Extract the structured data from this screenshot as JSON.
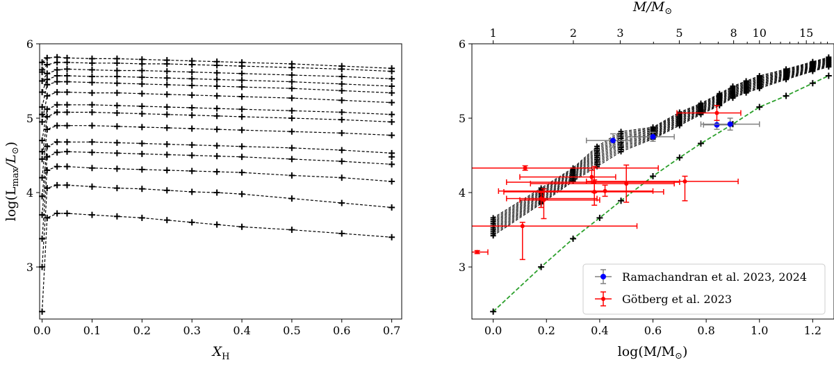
{
  "chart_data": [
    {
      "type": "line",
      "xlabel_main": "X",
      "xlabel_sub": "H",
      "ylabel_text": "log(L",
      "ylabel_sub": "max",
      "ylabel_tail": "/L",
      "ylabel_sun": "⊙",
      "ylabel_close": ")",
      "xlim": [
        -0.005,
        0.72
      ],
      "ylim": [
        2.3,
        6.0
      ],
      "xticks": [
        0.0,
        0.1,
        0.2,
        0.3,
        0.4,
        0.5,
        0.6,
        0.7
      ],
      "xtick_labels": [
        "0.0",
        "0.1",
        "0.2",
        "0.3",
        "0.4",
        "0.5",
        "0.6",
        "0.7"
      ],
      "yticks": [
        3,
        4,
        5,
        6
      ],
      "ytick_labels": [
        "3",
        "4",
        "5",
        "6"
      ],
      "x": [
        0.0,
        0.01,
        0.03,
        0.05,
        0.1,
        0.15,
        0.2,
        0.25,
        0.3,
        0.35,
        0.4,
        0.5,
        0.6,
        0.7
      ],
      "series": [
        {
          "values": [
            2.4,
            3.66,
            3.72,
            3.72,
            3.7,
            3.68,
            3.66,
            3.63,
            3.6,
            3.57,
            3.54,
            3.5,
            3.45,
            3.4
          ]
        },
        {
          "values": [
            3.0,
            4.06,
            4.1,
            4.1,
            4.08,
            4.06,
            4.05,
            4.03,
            4.01,
            4.0,
            3.98,
            3.92,
            3.86,
            3.8
          ]
        },
        {
          "values": [
            3.38,
            4.3,
            4.35,
            4.35,
            4.33,
            4.32,
            4.31,
            4.3,
            4.29,
            4.28,
            4.27,
            4.23,
            4.2,
            4.15
          ]
        },
        {
          "values": [
            3.7,
            4.48,
            4.54,
            4.55,
            4.54,
            4.53,
            4.52,
            4.51,
            4.5,
            4.49,
            4.48,
            4.45,
            4.42,
            4.38
          ]
        },
        {
          "values": [
            3.95,
            4.62,
            4.68,
            4.68,
            4.68,
            4.67,
            4.66,
            4.65,
            4.64,
            4.63,
            4.62,
            4.6,
            4.57,
            4.53
          ]
        },
        {
          "values": [
            4.2,
            4.85,
            4.9,
            4.9,
            4.9,
            4.89,
            4.88,
            4.87,
            4.86,
            4.85,
            4.84,
            4.82,
            4.8,
            4.77
          ]
        },
        {
          "values": [
            4.45,
            5.02,
            5.08,
            5.08,
            5.08,
            5.07,
            5.06,
            5.05,
            5.04,
            5.03,
            5.02,
            5.0,
            4.98,
            4.95
          ]
        },
        {
          "values": [
            4.7,
            5.12,
            5.18,
            5.18,
            5.18,
            5.17,
            5.16,
            5.15,
            5.14,
            5.13,
            5.12,
            5.1,
            5.08,
            5.05
          ]
        },
        {
          "values": [
            4.95,
            5.3,
            5.35,
            5.35,
            5.34,
            5.34,
            5.33,
            5.32,
            5.31,
            5.3,
            5.29,
            5.27,
            5.24,
            5.21
          ]
        },
        {
          "values": [
            5.15,
            5.45,
            5.49,
            5.49,
            5.48,
            5.47,
            5.46,
            5.45,
            5.44,
            5.43,
            5.42,
            5.4,
            5.37,
            5.34
          ]
        },
        {
          "values": [
            5.35,
            5.52,
            5.57,
            5.57,
            5.56,
            5.56,
            5.55,
            5.54,
            5.53,
            5.52,
            5.51,
            5.49,
            5.46,
            5.43
          ]
        },
        {
          "values": [
            5.5,
            5.6,
            5.65,
            5.66,
            5.65,
            5.64,
            5.64,
            5.63,
            5.62,
            5.61,
            5.6,
            5.58,
            5.56,
            5.53
          ]
        },
        {
          "values": [
            5.65,
            5.72,
            5.75,
            5.75,
            5.74,
            5.74,
            5.73,
            5.73,
            5.72,
            5.71,
            5.7,
            5.68,
            5.66,
            5.63
          ]
        },
        {
          "values": [
            5.75,
            5.81,
            5.82,
            5.81,
            5.8,
            5.8,
            5.79,
            5.78,
            5.77,
            5.76,
            5.75,
            5.73,
            5.7,
            5.67
          ]
        }
      ],
      "extra_markers": [
        {
          "x": 0.0,
          "y": 5.62
        },
        {
          "x": 0.0,
          "y": 5.05
        },
        {
          "x": 0.0,
          "y": 4.55
        },
        {
          "x": 0.7,
          "y": 4.48
        }
      ]
    },
    {
      "type": "line",
      "xlabel_text": "log(M/M",
      "xlabel_sun": "⊙",
      "xlabel_close": ")",
      "top_label_text": "M/M",
      "top_label_sun": "⊙",
      "xlim": [
        -0.08,
        1.28
      ],
      "ylim": [
        2.3,
        6.0
      ],
      "xticks": [
        0.0,
        0.2,
        0.4,
        0.6,
        0.8,
        1.0,
        1.2
      ],
      "xtick_labels": [
        "0.0",
        "0.2",
        "0.4",
        "0.6",
        "0.8",
        "1.0",
        "1.2"
      ],
      "yticks": [
        3,
        4,
        5,
        6
      ],
      "ytick_labels": [
        "3",
        "4",
        "5",
        "6"
      ],
      "top_ticks": [
        1,
        2,
        3,
        5,
        8,
        10,
        15
      ],
      "top_tick_labels": [
        "1",
        "2",
        "3",
        "5",
        "8",
        "10",
        "15"
      ],
      "top_minor_ticks": [
        4,
        6,
        7,
        9,
        11,
        12,
        13,
        14,
        16,
        17,
        18
      ],
      "track_x": [
        0.0,
        0.18,
        0.3,
        0.39,
        0.48,
        0.6,
        0.7,
        0.78,
        0.85,
        0.9,
        0.95,
        1.0,
        1.1,
        1.2,
        1.26
      ],
      "track_bands": [
        {
          "low": 3.42,
          "high": 3.66
        },
        {
          "low": 3.85,
          "high": 4.06
        },
        {
          "low": 4.15,
          "high": 4.33
        },
        {
          "low": 4.35,
          "high": 4.62
        },
        {
          "low": 4.55,
          "high": 4.82
        },
        {
          "low": 4.72,
          "high": 4.88
        },
        {
          "low": 4.9,
          "high": 5.08
        },
        {
          "low": 5.05,
          "high": 5.2
        },
        {
          "low": 5.17,
          "high": 5.33
        },
        {
          "low": 5.27,
          "high": 5.43
        },
        {
          "low": 5.34,
          "high": 5.5
        },
        {
          "low": 5.4,
          "high": 5.57
        },
        {
          "low": 5.52,
          "high": 5.66
        },
        {
          "low": 5.63,
          "high": 5.76
        },
        {
          "low": 5.69,
          "high": 5.82
        }
      ],
      "green_curve": {
        "x": [
          0.0,
          0.18,
          0.3,
          0.4,
          0.48,
          0.6,
          0.7,
          0.78,
          0.9,
          1.0,
          1.1,
          1.2,
          1.26
        ],
        "y": [
          2.4,
          3.0,
          3.38,
          3.66,
          3.89,
          4.22,
          4.47,
          4.66,
          4.92,
          5.15,
          5.3,
          5.47,
          5.57
        ]
      },
      "series": [
        {
          "name": "Ramachandran et al. 2023, 2024",
          "points": [
            {
              "x": 0.45,
              "y": 4.7,
              "xlo": 0.35,
              "xhi": 0.52,
              "ylo": 4.61,
              "yhi": 4.79
            },
            {
              "x": 0.6,
              "y": 4.75,
              "xlo": 0.5,
              "xhi": 0.68,
              "ylo": 4.69,
              "yhi": 4.81
            },
            {
              "x": 0.84,
              "y": 4.91,
              "xlo": 0.79,
              "xhi": 0.89,
              "ylo": 4.85,
              "yhi": 4.97
            },
            {
              "x": 0.89,
              "y": 4.92,
              "xlo": 0.78,
              "xhi": 1.0,
              "ylo": 4.84,
              "yhi": 5.0
            }
          ]
        },
        {
          "name": "Götberg et al. 2023",
          "points": [
            {
              "x": 0.12,
              "y": 4.33,
              "xlo": -0.1,
              "xhi": 0.62,
              "ylo": 4.3,
              "yhi": 4.36
            },
            {
              "x": 0.11,
              "y": 3.55,
              "xlo": -0.1,
              "xhi": 0.54,
              "ylo": 3.1,
              "yhi": 3.6
            },
            {
              "x": 0.18,
              "y": 3.92,
              "xlo": 0.05,
              "xhi": 0.39,
              "ylo": 3.8,
              "yhi": 4.0
            },
            {
              "x": 0.19,
              "y": 3.9,
              "xlo": 0.1,
              "xhi": 0.4,
              "ylo": 3.65,
              "yhi": 4.05
            },
            {
              "x": 0.37,
              "y": 4.21,
              "xlo": 0.1,
              "xhi": 0.46,
              "ylo": 4.12,
              "yhi": 4.3
            },
            {
              "x": 0.38,
              "y": 4.01,
              "xlo": 0.04,
              "xhi": 0.64,
              "ylo": 3.83,
              "yhi": 4.17
            },
            {
              "x": 0.38,
              "y": 4.14,
              "xlo": 0.05,
              "xhi": 0.7,
              "ylo": 4.0,
              "yhi": 4.35
            },
            {
              "x": 0.5,
              "y": 4.12,
              "xlo": 0.14,
              "xhi": 0.68,
              "ylo": 3.87,
              "yhi": 4.37
            },
            {
              "x": 0.72,
              "y": 4.15,
              "xlo": 0.35,
              "xhi": 0.92,
              "ylo": 3.89,
              "yhi": 4.22
            },
            {
              "x": 0.84,
              "y": 5.07,
              "xlo": 0.69,
              "xhi": 0.93,
              "ylo": 4.97,
              "yhi": 5.17
            },
            {
              "x": 0.42,
              "y": 4.02,
              "xlo": 0.02,
              "xhi": 0.6,
              "ylo": 3.95,
              "yhi": 4.1
            },
            {
              "x": -0.06,
              "y": 3.2,
              "xlo": -0.1,
              "xhi": -0.02,
              "ylo": 3.18,
              "yhi": 3.22
            }
          ]
        }
      ],
      "legend_position": "lower-right",
      "colors": {
        "ramachandran_marker": "#0000ff",
        "ramachandran_errorbar": "#808080",
        "gotberg": "#ff0000",
        "green_curve": "#2ca02c",
        "tracks": "#000000"
      }
    }
  ]
}
